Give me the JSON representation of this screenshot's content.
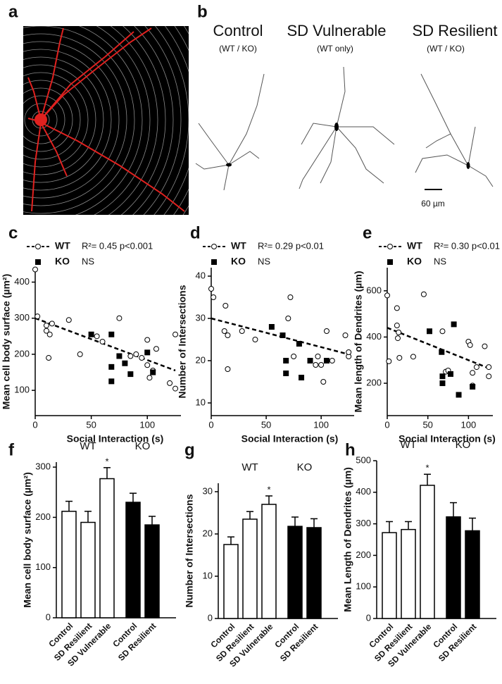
{
  "figure": {
    "panel_labels": [
      "a",
      "b",
      "c",
      "d",
      "e",
      "f",
      "g",
      "h"
    ],
    "tracings": [
      {
        "title": "Control",
        "subtitle": "(WT / KO)"
      },
      {
        "title": "SD Vulnerable",
        "subtitle": "(WT only)"
      },
      {
        "title": "SD Resilient",
        "subtitle": "(WT / KO)"
      }
    ],
    "scale_bar": "60 µm"
  },
  "chart_data": [
    {
      "type": "scatter",
      "xlabel": "Social Interaction (s)",
      "ylabel": "Mean cell body surface (µm²)",
      "xlim": [
        0,
        130
      ],
      "xticks": [
        0,
        50,
        100
      ],
      "ylim": [
        30,
        440
      ],
      "yticks": [
        100,
        200,
        300,
        400
      ],
      "series": [
        {
          "name": "WT",
          "color": "#000000",
          "marker": "open-circle",
          "annotation": "R²= 0.45 p<0.001",
          "x": [
            0,
            2,
            10,
            10,
            12,
            13,
            15,
            30,
            40,
            55,
            60,
            75,
            85,
            90,
            95,
            100,
            100,
            102,
            105,
            108,
            120,
            125,
            125
          ],
          "values": [
            435,
            305,
            265,
            280,
            190,
            255,
            285,
            295,
            200,
            250,
            235,
            300,
            195,
            200,
            190,
            240,
            170,
            135,
            155,
            215,
            120,
            255,
            105
          ],
          "fit": {
            "x": [
              0,
              125
            ],
            "values": [
              300,
              155
            ]
          }
        },
        {
          "name": "KO",
          "color": "#000000",
          "marker": "filled-square",
          "annotation": "NS",
          "x": [
            50,
            68,
            68,
            68,
            75,
            80,
            85,
            100,
            105
          ],
          "values": [
            255,
            255,
            165,
            125,
            195,
            175,
            145,
            205,
            150
          ]
        }
      ]
    },
    {
      "type": "scatter",
      "xlabel": "Social Interaction (s)",
      "ylabel": "Number of Intersections",
      "xlim": [
        0,
        130
      ],
      "xticks": [
        0,
        50,
        100
      ],
      "ylim": [
        7,
        42
      ],
      "yticks": [
        10,
        20,
        30,
        40
      ],
      "series": [
        {
          "name": "WT",
          "color": "#000000",
          "marker": "open-circle",
          "annotation": "R²= 0.29 p<0.01",
          "x": [
            0,
            2,
            12,
            13,
            15,
            15,
            28,
            40,
            70,
            72,
            75,
            95,
            97,
            100,
            102,
            105,
            110,
            122,
            125,
            125
          ],
          "values": [
            37,
            35,
            27,
            33,
            26,
            18,
            27,
            25,
            30,
            35,
            21,
            19,
            21,
            19,
            15,
            27,
            20,
            26,
            21,
            22
          ],
          "fit": {
            "x": [
              0,
              125
            ],
            "values": [
              30,
              21.5
            ]
          }
        },
        {
          "name": "KO",
          "color": "#000000",
          "marker": "filled-square",
          "annotation": "NS",
          "x": [
            55,
            65,
            68,
            68,
            80,
            82,
            90,
            105
          ],
          "values": [
            28,
            26,
            20,
            17,
            24,
            16,
            20,
            20
          ]
        }
      ]
    },
    {
      "type": "scatter",
      "xlabel": "Social Interaction (s)",
      "ylabel": "Mean length of Dendrites (µm)",
      "xlim": [
        0,
        130
      ],
      "xticks": [
        0,
        50,
        100
      ],
      "ylim": [
        60,
        700
      ],
      "yticks": [
        200,
        400,
        600
      ],
      "series": [
        {
          "name": "WT",
          "color": "#000000",
          "marker": "open-circle",
          "annotation": "R²= 0.30 p<0.01",
          "x": [
            0,
            2,
            12,
            12,
            13,
            14,
            15,
            32,
            45,
            68,
            72,
            75,
            100,
            102,
            105,
            105,
            110,
            120,
            125,
            125
          ],
          "values": [
            580,
            295,
            525,
            450,
            395,
            420,
            310,
            315,
            585,
            425,
            250,
            255,
            380,
            365,
            190,
            245,
            270,
            360,
            270,
            230
          ],
          "fit": {
            "x": [
              0,
              125
            ],
            "values": [
              440,
              265
            ]
          }
        },
        {
          "name": "KO",
          "color": "#000000",
          "marker": "filled-square",
          "annotation": "NS",
          "x": [
            52,
            67,
            68,
            68,
            78,
            82,
            88,
            105
          ],
          "values": [
            425,
            335,
            230,
            200,
            240,
            455,
            150,
            185
          ]
        }
      ]
    },
    {
      "type": "bar",
      "ylabel": "Mean cell body surface (µm²)",
      "ylim": [
        0,
        310
      ],
      "yticks": [
        0,
        100,
        200,
        300
      ],
      "series": [
        {
          "name": "WT",
          "color": "#ffffff",
          "categories": [
            "Control",
            "SD Resilient",
            "SD Vulnerable"
          ],
          "values": [
            212,
            190,
            277
          ],
          "errors": [
            20,
            22,
            22
          ],
          "significance": [
            null,
            null,
            "*"
          ]
        },
        {
          "name": "KO",
          "color": "#000000",
          "categories": [
            "Control",
            "SD Resilient"
          ],
          "values": [
            230,
            185
          ],
          "errors": [
            18,
            17
          ]
        }
      ]
    },
    {
      "type": "bar",
      "ylabel": "Number of Intersections",
      "ylim": [
        0,
        32
      ],
      "yticks": [
        0,
        10,
        20,
        30
      ],
      "series": [
        {
          "name": "WT",
          "color": "#ffffff",
          "categories": [
            "Control",
            "SD Resilient",
            "SD Vulnerable"
          ],
          "values": [
            17.5,
            23.5,
            27
          ],
          "errors": [
            1.8,
            1.8,
            2
          ],
          "significance": [
            null,
            null,
            "*"
          ]
        },
        {
          "name": "KO",
          "color": "#000000",
          "categories": [
            "Control",
            "SD Resilient"
          ],
          "values": [
            21.8,
            21.5
          ],
          "errors": [
            2.2,
            2.1
          ]
        }
      ]
    },
    {
      "type": "bar",
      "ylabel": "Mean Length of Dendrites (µm)",
      "ylim": [
        0,
        500
      ],
      "yticks": [
        0,
        100,
        200,
        300,
        400,
        500
      ],
      "series": [
        {
          "name": "WT",
          "color": "#ffffff",
          "categories": [
            "Control",
            "SD Resilient",
            "SD Vulnerable"
          ],
          "values": [
            272,
            282,
            422
          ],
          "errors": [
            35,
            25,
            35
          ],
          "significance": [
            null,
            null,
            "*"
          ]
        },
        {
          "name": "KO",
          "color": "#000000",
          "categories": [
            "Control",
            "SD Resilient"
          ],
          "values": [
            322,
            278
          ],
          "errors": [
            45,
            40
          ]
        }
      ]
    }
  ]
}
